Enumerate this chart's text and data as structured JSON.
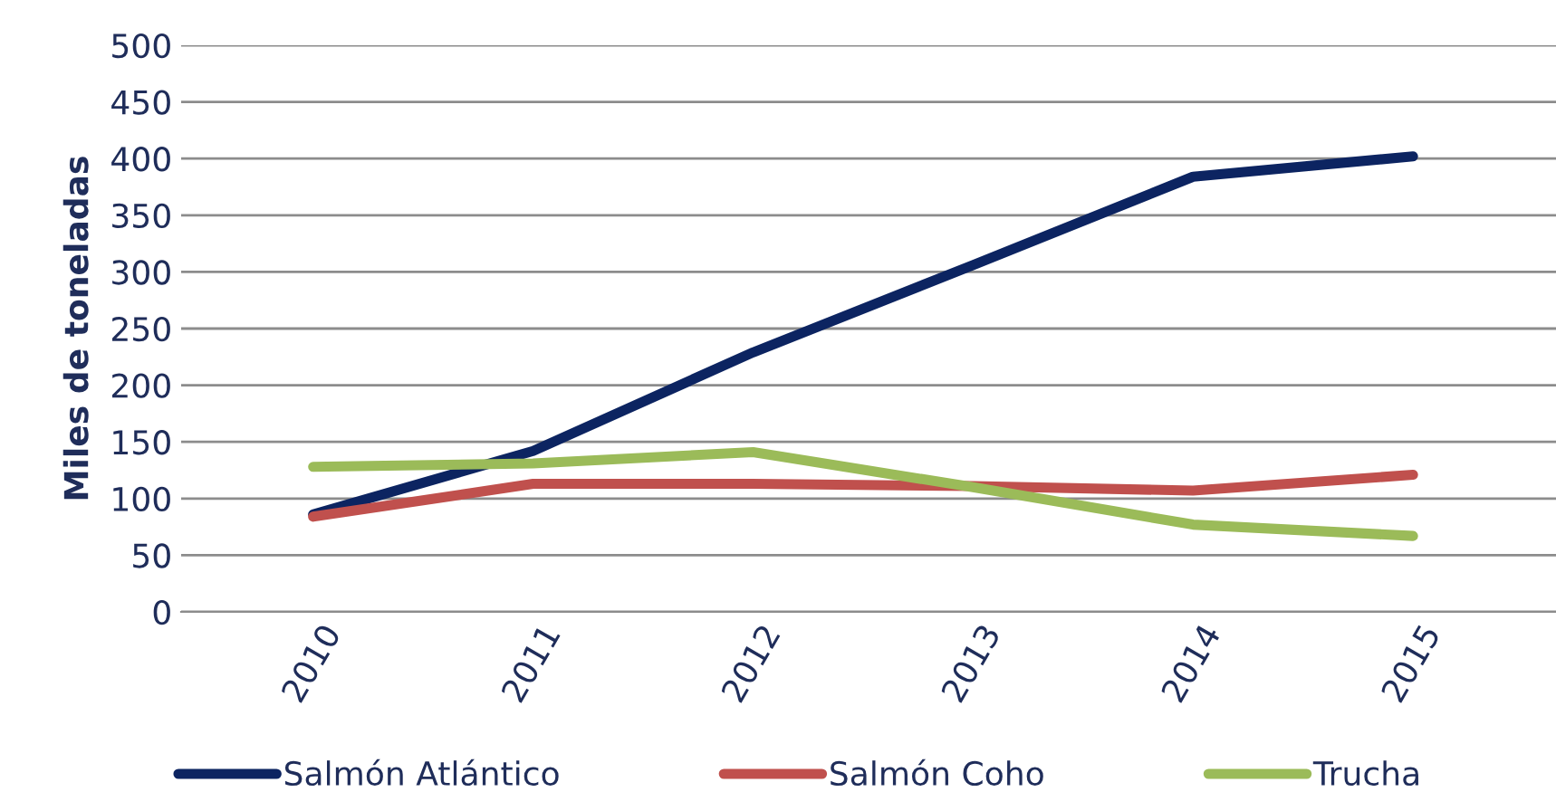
{
  "chart_data": {
    "type": "line",
    "ylabel": "Miles de toneladas",
    "categories": [
      "2010",
      "2011",
      "2012",
      "2013",
      "2014",
      "2015"
    ],
    "series": [
      {
        "name": "Salmón Atlántico",
        "color": "#0c2461",
        "values": [
          86,
          142,
          229,
          306,
          384,
          402
        ]
      },
      {
        "name": "Salmón Coho",
        "color": "#c0504d",
        "values": [
          84,
          113,
          113,
          111,
          107,
          121
        ]
      },
      {
        "name": "Trucha",
        "color": "#9bbb59",
        "values": [
          128,
          131,
          141,
          110,
          77,
          67
        ]
      }
    ],
    "ylim": [
      0,
      500
    ],
    "yticks": [
      0,
      50,
      100,
      150,
      200,
      250,
      300,
      350,
      400,
      450,
      500
    ],
    "grid": "y",
    "legend": "bottom",
    "marker": "none",
    "line_style": "solid"
  }
}
